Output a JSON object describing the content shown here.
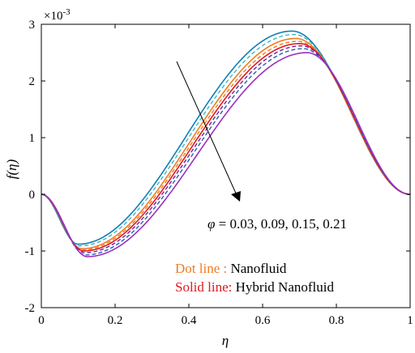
{
  "chart_data": {
    "type": "line",
    "xlabel": "η",
    "ylabel": "f(η)",
    "y_multiplier": "×10",
    "y_multiplier_exp": "-3",
    "xlim": [
      0,
      1
    ],
    "ylim": [
      -2,
      3
    ],
    "xticks": [
      "0",
      "0.2",
      "0.4",
      "0.6",
      "0.8",
      "1"
    ],
    "yticks": [
      "3",
      "2",
      "1",
      "0",
      "-1",
      "-2"
    ],
    "annotation": {
      "symbol": "φ",
      "text": " = 0.03, 0.09, 0.15, 0.21"
    },
    "legend": [
      {
        "label": "Dot line",
        "sep": " : ",
        "desc": "Nanofluid",
        "color": "#f07c20"
      },
      {
        "label": "Solid line:",
        "sep": " ",
        "desc": "Hybrid Nanofluid",
        "color": "#e0191f"
      }
    ],
    "series": [
      {
        "style": "solid",
        "color": "#0e7fb5",
        "min": [
          0.1,
          -0.88
        ],
        "max": [
          0.68,
          2.88
        ]
      },
      {
        "style": "dashed",
        "color": "#41b6c4",
        "min": [
          0.105,
          -0.91
        ],
        "max": [
          0.685,
          2.82
        ]
      },
      {
        "style": "solid",
        "color": "#f07c20",
        "min": [
          0.11,
          -0.96
        ],
        "max": [
          0.69,
          2.75
        ]
      },
      {
        "style": "dashed",
        "color": "#f07c20",
        "min": [
          0.112,
          -0.98
        ],
        "max": [
          0.695,
          2.7
        ]
      },
      {
        "style": "solid",
        "color": "#e0191f",
        "min": [
          0.115,
          -1.0
        ],
        "max": [
          0.7,
          2.66
        ]
      },
      {
        "style": "dashed",
        "color": "#7a1fa2",
        "min": [
          0.118,
          -1.03
        ],
        "max": [
          0.705,
          2.62
        ]
      },
      {
        "style": "dashed",
        "color": "#2a5db0",
        "min": [
          0.12,
          -1.07
        ],
        "max": [
          0.71,
          2.57
        ]
      },
      {
        "style": "solid",
        "color": "#9b2fc1",
        "min": [
          0.125,
          -1.1
        ],
        "max": [
          0.72,
          2.5
        ]
      }
    ]
  }
}
